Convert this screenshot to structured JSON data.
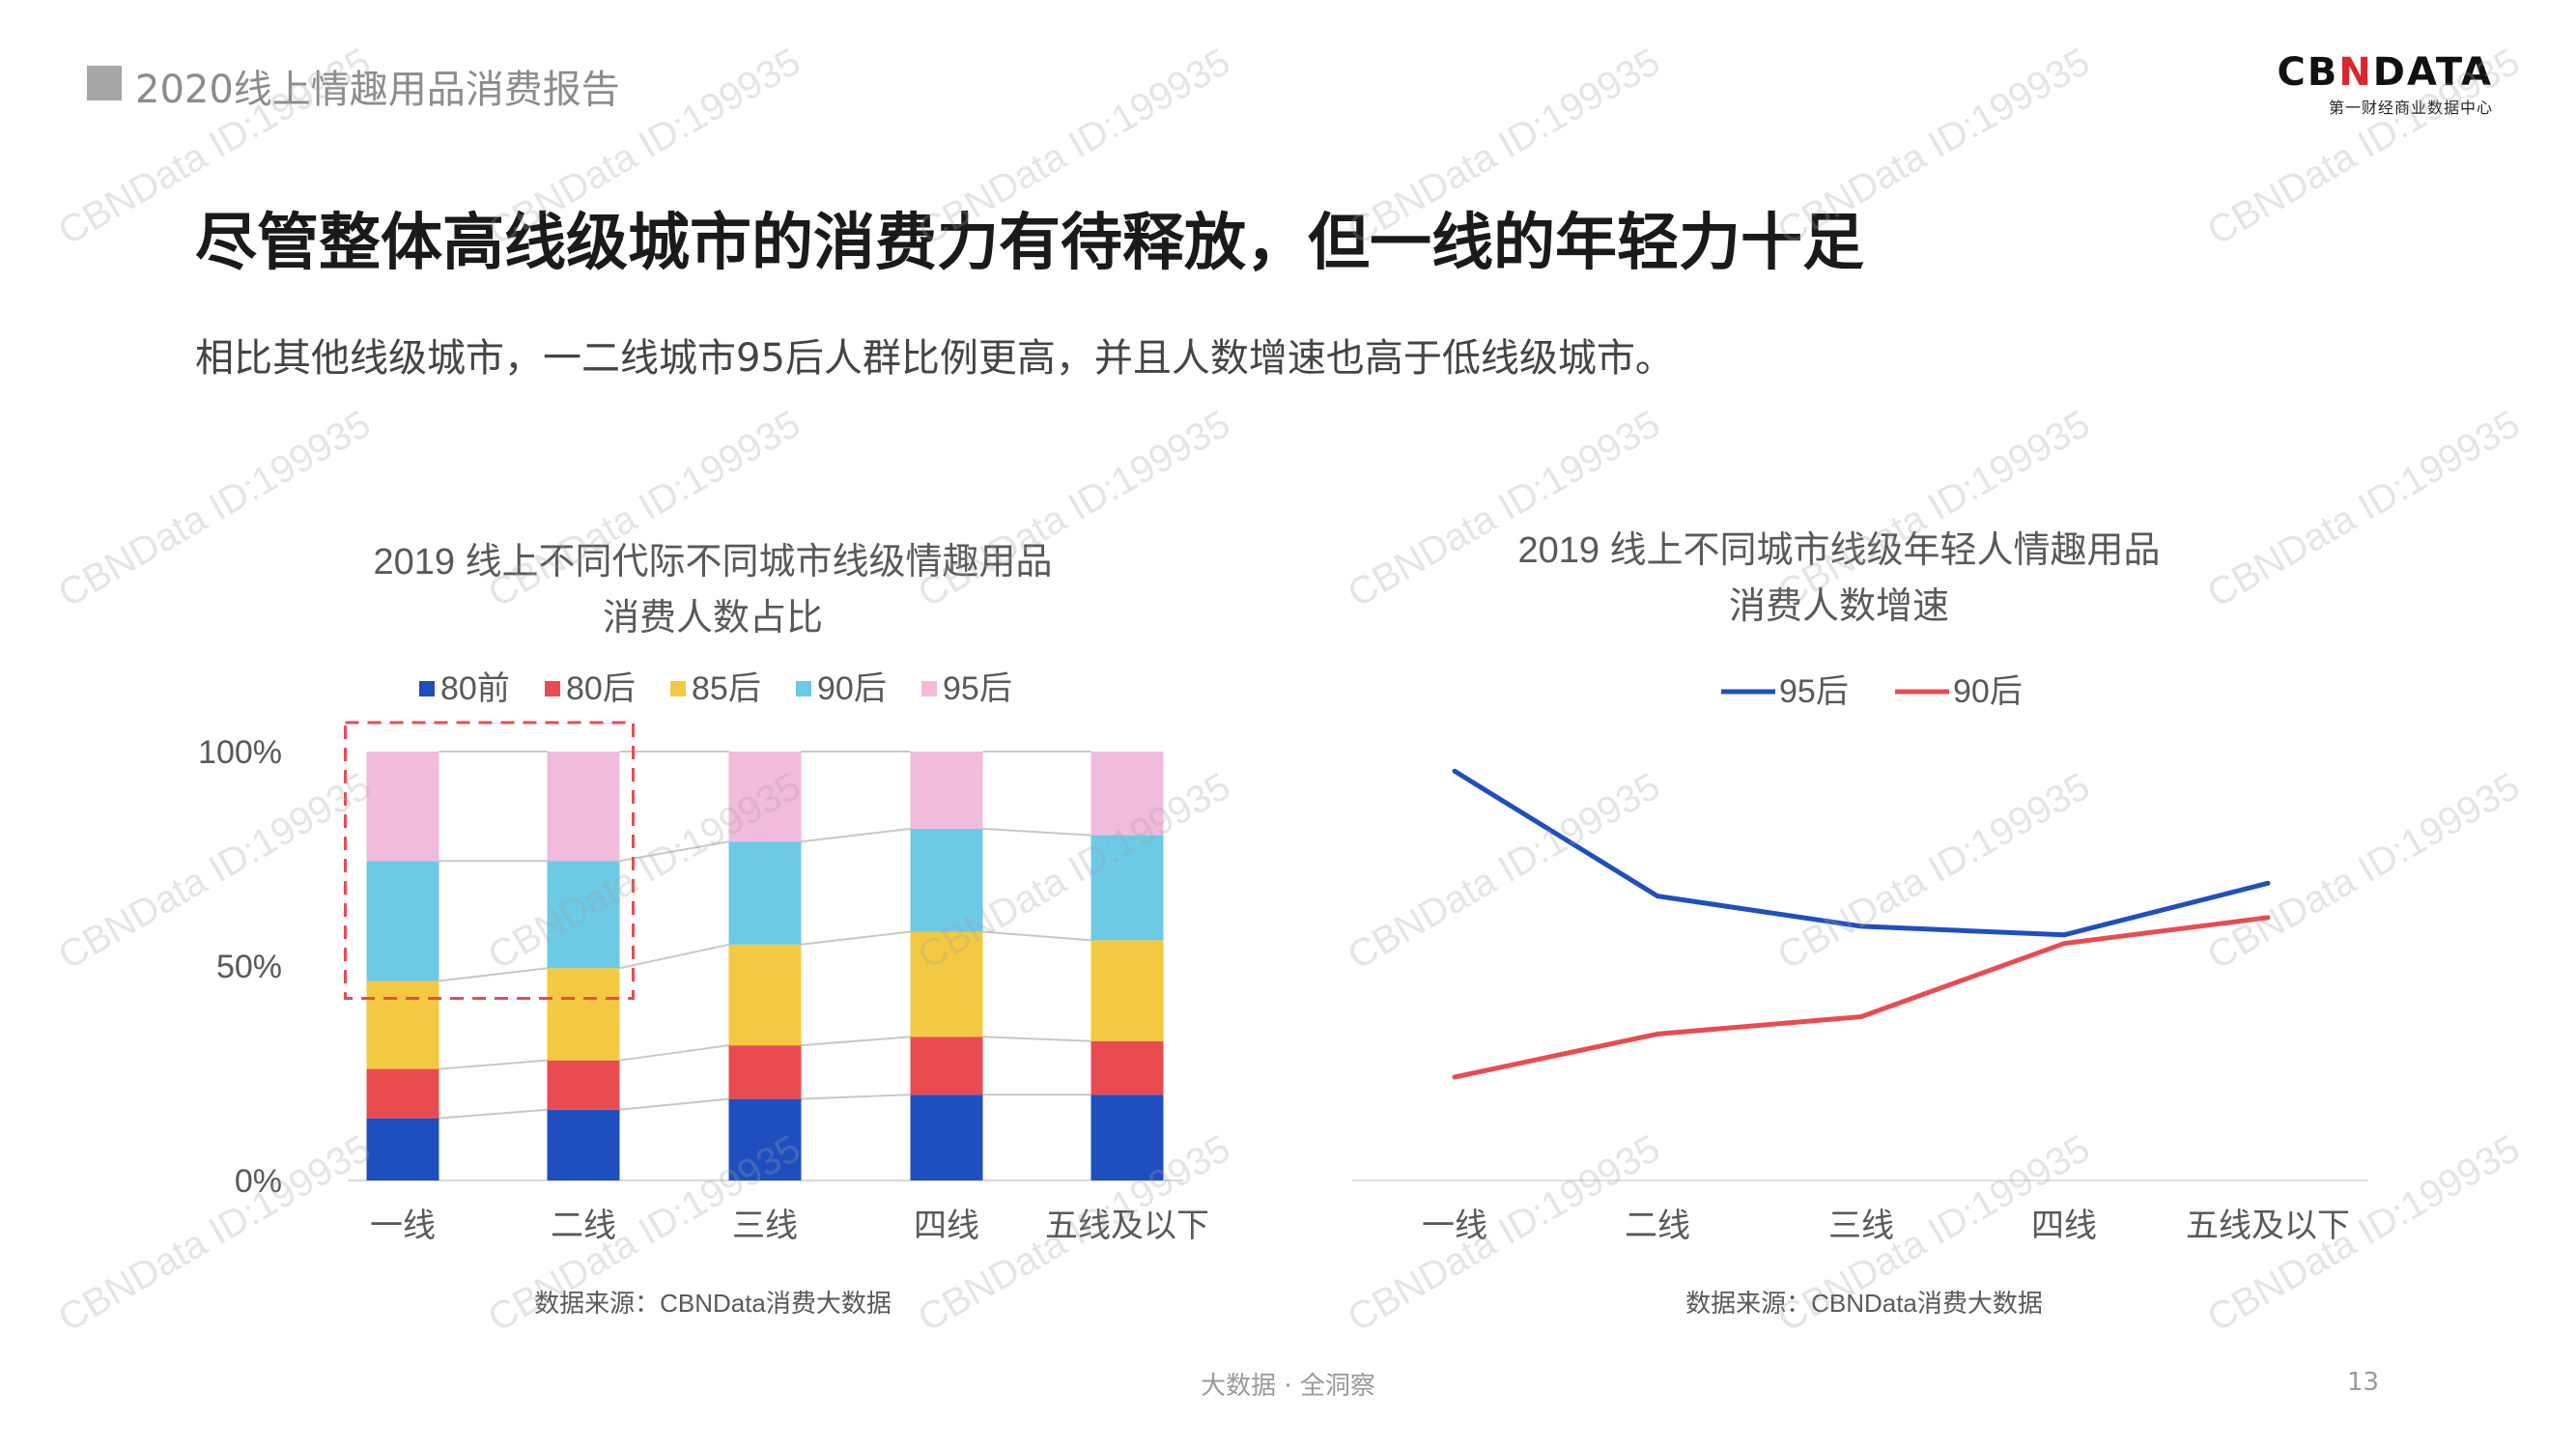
{
  "header": {
    "title": "2020线上情趣用品消费报告"
  },
  "logo": {
    "main_left": "CB",
    "main_x": "N",
    "main_right": "DATA",
    "sub": "第一财经商业数据中心"
  },
  "main_title": "尽管整体高线级城市的消费力有待释放，但一线的年轻力十足",
  "subtitle": "相比其他线级城市，一二线城市95后人群比例更高，并且人数增速也高于低线级城市。",
  "chart_data": [
    {
      "type": "bar",
      "stacked": true,
      "title_lines": [
        "2019 线上不同代际不同城市线级情趣用品",
        "消费人数占比"
      ],
      "categories": [
        "一线",
        "二线",
        "三线",
        "四线",
        "五线及以下"
      ],
      "y_ticks": [
        "0%",
        "50%",
        "100%"
      ],
      "ylim": [
        0,
        100
      ],
      "series": [
        {
          "name": "80前",
          "color": "#1f4fbf",
          "values": [
            14.5,
            16.5,
            19,
            20,
            20
          ]
        },
        {
          "name": "80后",
          "color": "#e84c51",
          "values": [
            11.5,
            11.5,
            12.5,
            13.5,
            12.5
          ]
        },
        {
          "name": "85后",
          "color": "#f4c942",
          "values": [
            20.5,
            21.5,
            23.5,
            24.5,
            23.5
          ]
        },
        {
          "name": "90后",
          "color": "#6ccae6",
          "values": [
            28,
            25,
            24,
            24,
            24.5
          ]
        },
        {
          "name": "95后",
          "color": "#f1bbdc",
          "values": [
            25.5,
            25.5,
            21,
            18,
            19.5
          ]
        }
      ],
      "highlight": {
        "categories": [
          "一线",
          "二线"
        ],
        "series": [
          "90后",
          "95后"
        ]
      },
      "source": "数据来源：CBNData消费大数据"
    },
    {
      "type": "line",
      "title_lines": [
        "2019 线上不同城市线级年轻人情趣用品",
        "消费人数增速"
      ],
      "categories": [
        "一线",
        "二线",
        "三线",
        "四线",
        "五线及以下"
      ],
      "series": [
        {
          "name": "95后",
          "color": "#1f4fbf",
          "values": [
            0.95,
            0.66,
            0.59,
            0.57,
            0.69
          ]
        },
        {
          "name": "90后",
          "color": "#e84c51",
          "values": [
            0.24,
            0.34,
            0.38,
            0.55,
            0.61
          ]
        }
      ],
      "source": "数据来源：CBNData消费大数据"
    }
  ],
  "footer": {
    "text": "大数据 · 全洞察",
    "page_number": "13"
  },
  "watermark": "CBNData ID:199935"
}
